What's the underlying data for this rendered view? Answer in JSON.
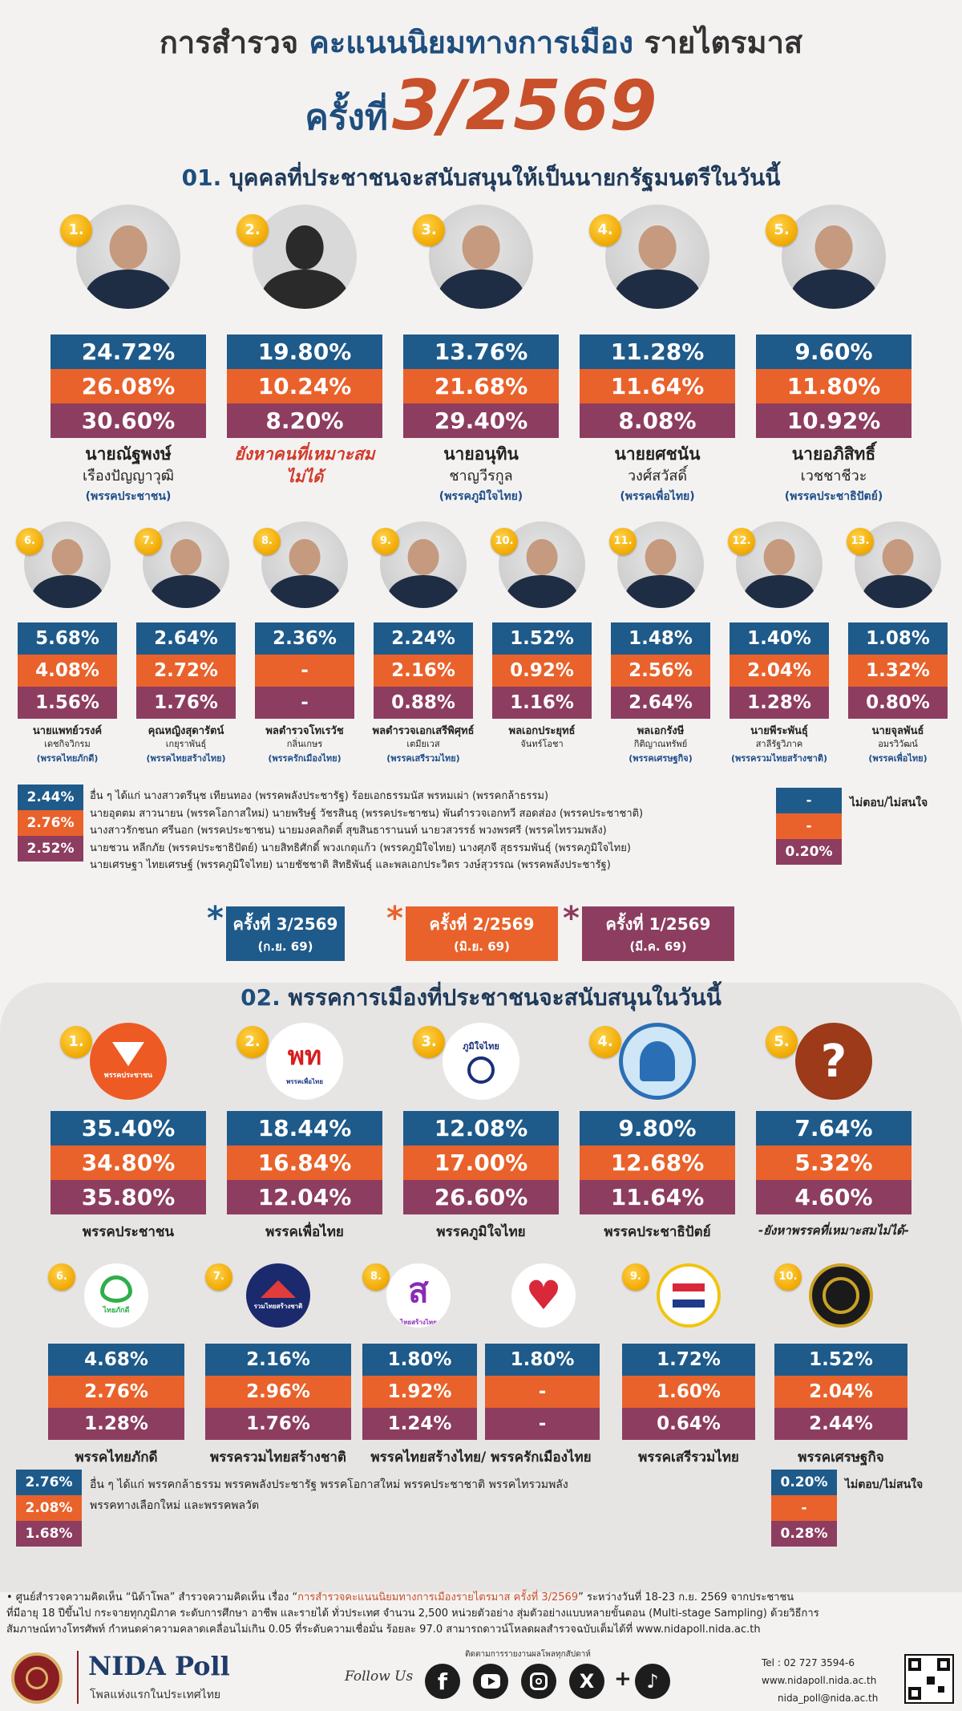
{
  "header": {
    "title_part1": "การสำรวจ",
    "title_part2": "คะแนนนิยมทางการเมือง",
    "title_part3": "รายไตรมาส",
    "subtitle_prefix": "ครั้งที่",
    "subtitle_number": "3/2569"
  },
  "section1": {
    "number": "01.",
    "title": "บุคคลที่ประชาชนจะสนับสนุนให้เป็นนายกรัฐมนตรีในวันนี้"
  },
  "section2": {
    "number": "02.",
    "title": "พรรคการเมืองที่ประชาชนจะสนับสนุนในวันนี้"
  },
  "colors": {
    "q3_2569": "#1e5a8a",
    "q2_2569": "#e9622b",
    "q1_2569": "#8d3d5f"
  },
  "legend": [
    {
      "label": "ครั้งที่ 3/2569",
      "sub": "(ก.ย. 69)",
      "color": "#1e5a8a"
    },
    {
      "label": "ครั้งที่ 2/2569",
      "sub": "(มิ.ย. 69)",
      "color": "#e9622b"
    },
    {
      "label": "ครั้งที่ 1/2569",
      "sub": "(มี.ค. 69)",
      "color": "#8d3d5f"
    }
  ],
  "chart_data": [
    {
      "type": "bar",
      "title": "บุคคลที่ประชาชนจะสนับสนุนให้เป็นนายกรัฐมนตรีในวันนี้",
      "series_names": [
        "ครั้งที่ 3/2569",
        "ครั้งที่ 2/2569",
        "ครั้งที่ 1/2569"
      ],
      "candidates": [
        {
          "rank": "1.",
          "name1": "นายณัฐพงษ์",
          "name2": "เรืองปัญญาวุฒิ",
          "party": "(พรรคประชาชน)",
          "values": [
            "24.72%",
            "26.08%",
            "30.60%"
          ]
        },
        {
          "rank": "2.",
          "name1": "ยังหาคนที่เหมาะสม",
          "name2": "ไม่ได้",
          "party": "",
          "values": [
            "19.80%",
            "10.24%",
            "8.20%"
          ]
        },
        {
          "rank": "3.",
          "name1": "นายอนุทิน",
          "name2": "ชาญวีรกูล",
          "party": "(พรรคภูมิใจไทย)",
          "values": [
            "13.76%",
            "21.68%",
            "29.40%"
          ]
        },
        {
          "rank": "4.",
          "name1": "นายยศชนัน",
          "name2": "วงศ์สวัสดิ์",
          "party": "(พรรคเพื่อไทย)",
          "values": [
            "11.28%",
            "11.64%",
            "8.08%"
          ]
        },
        {
          "rank": "5.",
          "name1": "นายอภิสิทธิ์",
          "name2": "เวชชาชีวะ",
          "party": "(พรรคประชาธิปัตย์)",
          "values": [
            "9.60%",
            "11.80%",
            "10.92%"
          ]
        },
        {
          "rank": "6.",
          "name1": "นายแพทย์วรงค์",
          "name2": "เดชกิจวิกรม",
          "party": "(พรรคไทยภักดี)",
          "values": [
            "5.68%",
            "4.08%",
            "1.56%"
          ]
        },
        {
          "rank": "7.",
          "name1": "คุณหญิงสุดารัตน์",
          "name2": "เกยุราพันธุ์",
          "party": "(พรรคไทยสร้างไทย)",
          "values": [
            "2.64%",
            "2.72%",
            "1.76%"
          ]
        },
        {
          "rank": "8.",
          "name1": "พลตำรวจโทเรวัช",
          "name2": "กลิ่นเกษร",
          "party": "(พรรครักเมืองไทย)",
          "values": [
            "2.36%",
            "-",
            "-"
          ]
        },
        {
          "rank": "9.",
          "name1": "พลตำรวจเอกเสรีพิศุทธ์",
          "name2": "เตมียเวส",
          "party": "(พรรคเสรีรวมไทย)",
          "values": [
            "2.24%",
            "2.16%",
            "0.88%"
          ]
        },
        {
          "rank": "10.",
          "name1": "พลเอกประยุทธ์",
          "name2": "จันทร์โอชา",
          "party": "",
          "values": [
            "1.52%",
            "0.92%",
            "1.16%"
          ]
        },
        {
          "rank": "11.",
          "name1": "พลเอกรังษี",
          "name2": "กิติญาณทรัพย์",
          "party": "(พรรคเศรษฐกิจ)",
          "values": [
            "1.48%",
            "2.56%",
            "2.64%"
          ]
        },
        {
          "rank": "12.",
          "name1": "นายพีระพันธุ์",
          "name2": "สาลีรัฐวิภาค",
          "party": "(พรรครวมไทยสร้างชาติ)",
          "values": [
            "1.40%",
            "2.04%",
            "1.28%"
          ]
        },
        {
          "rank": "13.",
          "name1": "นายจุลพันธ์",
          "name2": "อมรวิวัฒน์",
          "party": "(พรรคเพื่อไทย)",
          "values": [
            "1.08%",
            "1.32%",
            "0.80%"
          ]
        }
      ],
      "others": {
        "values": [
          "2.44%",
          "2.76%",
          "2.52%"
        ],
        "lines": [
          "อื่น ๆ ได้แก่ นางสาวตรีนุช เทียนทอง (พรรคพลังประชารัฐ) ร้อยเอกธรรมนัส พรหมเผ่า (พรรคกล้าธรรม)",
          "นายอุตตม สาวนายน (พรรคโอกาสใหม่) นายพริษฐ์ วัชรสินธุ (พรรคประชาชน) พันตำรวจเอกทวี สอดส่อง (พรรคประชาชาติ)",
          "นางสาวรักชนก ศรีนอก (พรรคประชาชน) นายมงคลกิตติ์ สุขสินธารานนท์ นายวสวรรธ์ พวงพรศรี (พรรคไทรวมพลัง)",
          "นายชวน หลีกภัย (พรรคประชาธิปัตย์) นายสิทธิศักดิ์ พวงเกตุแก้ว (พรรคภูมิใจไทย) นางศุภจี สุธรรมพันธุ์ (พรรคภูมิใจไทย)",
          "นายเศรษฐา ไทยเศรษฐ์ (พรรคภูมิใจไทย) นายชัชชาติ สิทธิพันธุ์ และพลเอกประวิตร วงษ์สุวรรณ (พรรคพลังประชารัฐ)"
        ]
      },
      "no_answer": {
        "label": "ไม่ตอบ/ไม่สนใจ",
        "values": [
          "-",
          "-",
          "0.20%"
        ]
      }
    },
    {
      "type": "bar",
      "title": "พรรคการเมืองที่ประชาชนจะสนับสนุนในวันนี้",
      "series_names": [
        "ครั้งที่ 3/2569",
        "ครั้งที่ 2/2569",
        "ครั้งที่ 1/2569"
      ],
      "parties": [
        {
          "rank": "1.",
          "name": "พรรคประชาชน",
          "values": [
            "35.40%",
            "34.80%",
            "35.80%"
          ]
        },
        {
          "rank": "2.",
          "name": "พรรคเพื่อไทย",
          "values": [
            "18.44%",
            "16.84%",
            "12.04%"
          ]
        },
        {
          "rank": "3.",
          "name": "พรรคภูมิใจไทย",
          "values": [
            "12.08%",
            "17.00%",
            "26.60%"
          ]
        },
        {
          "rank": "4.",
          "name": "พรรคประชาธิปัตย์",
          "values": [
            "9.80%",
            "12.68%",
            "11.64%"
          ]
        },
        {
          "rank": "5.",
          "name": "-ยังหาพรรคที่เหมาะสมไม่ได้-",
          "values": [
            "7.64%",
            "5.32%",
            "4.60%"
          ]
        },
        {
          "rank": "6.",
          "name": "พรรคไทยภักดี",
          "values": [
            "4.68%",
            "2.76%",
            "1.28%"
          ]
        },
        {
          "rank": "7.",
          "name": "พรรครวมไทยสร้างชาติ",
          "values": [
            "2.16%",
            "2.96%",
            "1.76%"
          ]
        },
        {
          "rank": "8.",
          "name": "พรรคไทยสร้างไทย/ พรรครักเมืองไทย",
          "values": [
            "1.80%",
            "1.92%",
            "1.24%"
          ],
          "values_b": [
            "1.80%",
            "-",
            "-"
          ]
        },
        {
          "rank": "9.",
          "name": "พรรคเสรีรวมไทย",
          "values": [
            "1.72%",
            "1.60%",
            "0.64%"
          ]
        },
        {
          "rank": "10.",
          "name": "พรรคเศรษฐกิจ",
          "values": [
            "1.52%",
            "2.04%",
            "2.44%"
          ]
        }
      ],
      "others": {
        "values": [
          "2.76%",
          "2.08%",
          "1.68%"
        ],
        "lines": [
          "อื่น ๆ ได้แก่ พรรคกล้าธรรม พรรคพลังประชารัฐ พรรคโอกาสใหม่ พรรคประชาชาติ พรรคไทรวมพลัง",
          "พรรคทางเลือกใหม่ และพรรคพลวัต"
        ]
      },
      "no_answer": {
        "label": "ไม่ตอบ/ไม่สนใจ",
        "values": [
          "0.20%",
          "-",
          "0.28%"
        ]
      }
    }
  ],
  "logos": {
    "p1": "พรรคประชาชน",
    "p2": "พท",
    "p2sub": "พรรคเพื่อไทย",
    "p3": "ภูมิใจไทย",
    "p5": "?",
    "p6": "ไทยภักดี",
    "p7": "รวมไทยสร้างชาติ",
    "p8a": "ส",
    "p8asub": "ไทยสร้างไทย"
  },
  "footnote": {
    "text_a": "• ศูนย์สำรวจความคิดเห็น “นิด้าโพล” สำรวจความคิดเห็น เรื่อง “",
    "survey_name": "การสำรวจคะแนนนิยมทางการเมืองรายไตรมาส ครั้งที่ 3/2569",
    "text_b": "” ระหว่างวันที่ 18-23 ก.ย. 2569 จากประชาชน",
    "line2": "ที่มีอายุ 18 ปีขึ้นไป กระจายทุกภูมิภาค ระดับการศึกษา อาชีพ และรายได้ ทั่วประเทศ จำนวน 2,500 หน่วยตัวอย่าง สุ่มตัวอย่างแบบหลายขั้นตอน (Multi-stage Sampling) ด้วยวิธีการ",
    "line3": "สัมภาษณ์ทางโทรศัพท์ กำหนดค่าความคลาดเคลื่อนไม่เกิน 0.05 ที่ระดับความเชื่อมั่น ร้อยละ 97.0 สามารถดาวน์โหลดผลสำรวจฉบับเต็มได้ที่ www.nidapoll.nida.ac.th"
  },
  "footer": {
    "brand": "NIDA Poll",
    "tagline": "โพลแห่งแรกในประเทศไทย",
    "follow": "Follow Us",
    "credit": "ติดตามการรายงานผลโพลทุกสัปดาห์",
    "tel": "Tel : 02 727 3594-6",
    "web": "www.nidapoll.nida.ac.th",
    "email": "nida_poll@nida.ac.th"
  }
}
